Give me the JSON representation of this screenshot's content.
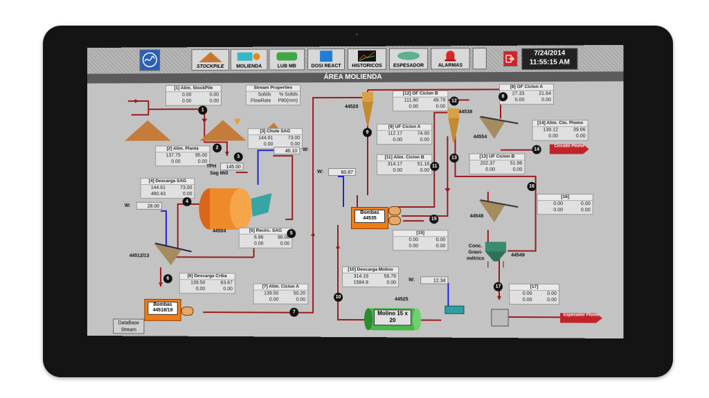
{
  "toolbar": {
    "buttons": [
      {
        "label": "STOCKPILE",
        "icon": "stockpile-icon"
      },
      {
        "label": "MOLIENDA",
        "icon": "molienda-icon"
      },
      {
        "label": "LUB MB",
        "icon": "lub-mb-icon"
      },
      {
        "label": "DOSI REACT",
        "icon": "dosi-react-icon"
      },
      {
        "label": "HISTORICOS",
        "icon": "historicos-icon"
      },
      {
        "label": "ESPESADOR",
        "icon": "espesador-icon"
      },
      {
        "label": "ALARMAS",
        "icon": "alarm-icon"
      }
    ],
    "date": "7/24/2014",
    "time": "11:55:15 AM"
  },
  "title": "ÁREA MOLIENDA",
  "stream_properties": {
    "title": "Stream Properties",
    "r1": [
      "Solids",
      "% Solids"
    ],
    "r2": [
      "FlowRate",
      "P80(mm)"
    ]
  },
  "streams": {
    "s1": {
      "title": "[1] Alim. StockPile",
      "v": [
        "0.00",
        "0.00",
        "0.00",
        "0.00"
      ]
    },
    "s2": {
      "title": "[2] Alim. Planta",
      "v": [
        "137.75",
        "95.00",
        "0.00",
        "0.00"
      ]
    },
    "s3": {
      "title": "[3] Chute SAG",
      "v": [
        "144.61",
        "73.00",
        "0.00",
        "0.00"
      ]
    },
    "s4": {
      "title": "[4] Descarga SAG",
      "v": [
        "144.61",
        "73.00",
        "480.43",
        "0.00"
      ]
    },
    "s5": {
      "title": "[5] Recirc. SAG",
      "v": [
        "6.86",
        "98.00",
        "0.00",
        "0.00"
      ]
    },
    "s6": {
      "title": "[6] Descarga Criba",
      "v": [
        "139.50",
        "63.67",
        "0.00",
        "0.00"
      ]
    },
    "s7": {
      "title": "[7] Alim. Ciclon A",
      "v": [
        "139.50",
        "50.20",
        "0.00",
        "0.00"
      ]
    },
    "s8": {
      "title": "[8] OF Ciclon A",
      "v": [
        "27.33",
        "21.64",
        "0.00",
        "0.00"
      ]
    },
    "s9": {
      "title": "[9] UF Ciclon A",
      "v": [
        "112.17",
        "74.00",
        "0.00",
        "0.00"
      ]
    },
    "s10": {
      "title": "[10] Descarga Molino",
      "v": [
        "314.19",
        "56.79",
        "1584.8",
        "0.00"
      ]
    },
    "s11": {
      "title": "[11] Alim. Ciclon B",
      "v": [
        "314.17",
        "51.16",
        "0.00",
        "0.00"
      ]
    },
    "s12": {
      "title": "[12] OF Ciclon B",
      "v": [
        "111.80",
        "49.79",
        "0.00",
        "0.00"
      ]
    },
    "s13": {
      "title": "[13] UF Ciclon B",
      "v": [
        "202.37",
        "51.96",
        "0.00",
        "0.00"
      ]
    },
    "s14": {
      "title": "[14] Alim. Cto. Plomo",
      "v": [
        "139.12",
        "39.66",
        "0.00",
        "0.00"
      ]
    },
    "s15": {
      "title": "[15]",
      "v": [
        "0.00",
        "0.00",
        "0.00",
        "0.00"
      ]
    },
    "s16": {
      "title": "[16]",
      "v": [
        "0.00",
        "0.00",
        "0.00",
        "0.00"
      ]
    },
    "s17": {
      "title": "[17]",
      "v": [
        "0.00",
        "0.00",
        "0.00",
        "0.00"
      ]
    }
  },
  "water": {
    "label": "W:",
    "w1": "46.10",
    "w2": "28.00",
    "w3": "60.87",
    "w4": "12.34"
  },
  "tph": {
    "label": "TPH",
    "value": "145.00"
  },
  "labels": {
    "sag_mill": "Sag Mill",
    "sag_id": "44504",
    "screen_id": "44512/13",
    "pump_a": "Bombas 44518/19",
    "pump_b": "Bombas 44535",
    "cyc_a": "44520",
    "cyc_b": "44538",
    "float_a": "44554",
    "float_b": "44548",
    "conc": "Conc. Gravi- métrico",
    "conc_id": "44549",
    "mill_id": "44525",
    "molino": "Molino 15 x 20",
    "database": "DataBase Stream",
    "circuito": "Circuito Plomo",
    "espesador": "Espesador Plomo"
  },
  "nodes": [
    "1",
    "2",
    "3",
    "4",
    "5",
    "6",
    "7",
    "8",
    "9",
    "10",
    "11",
    "12",
    "13",
    "14",
    "15",
    "16",
    "17"
  ]
}
